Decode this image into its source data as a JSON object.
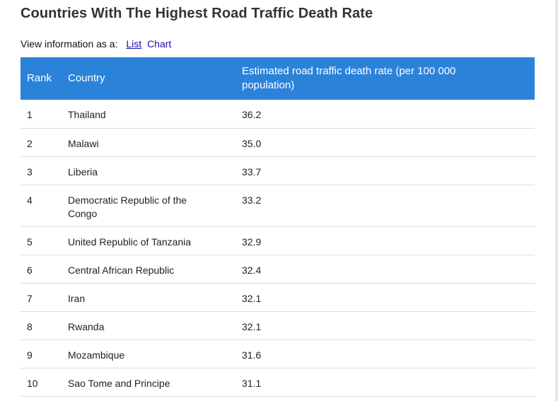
{
  "page": {
    "title": "Countries With The Highest Road Traffic Death Rate"
  },
  "view": {
    "label": "View information as a:",
    "list_link": "List",
    "chart_link": "Chart"
  },
  "table": {
    "headers": {
      "rank": "Rank",
      "country": "Country",
      "rate": "Estimated road traffic death rate (per 100 000 population)"
    },
    "rows": [
      {
        "rank": "1",
        "country": "Thailand",
        "rate": "36.2"
      },
      {
        "rank": "2",
        "country": "Malawi",
        "rate": "35.0"
      },
      {
        "rank": "3",
        "country": "Liberia",
        "rate": "33.7"
      },
      {
        "rank": "4",
        "country": "Democratic Republic of the Congo",
        "rate": "33.2"
      },
      {
        "rank": "5",
        "country": "United Republic of Tanzania",
        "rate": "32.9"
      },
      {
        "rank": "6",
        "country": "Central African Republic",
        "rate": "32.4"
      },
      {
        "rank": "7",
        "country": "Iran",
        "rate": "32.1"
      },
      {
        "rank": "8",
        "country": "Rwanda",
        "rate": "32.1"
      },
      {
        "rank": "9",
        "country": "Mozambique",
        "rate": "31.6"
      },
      {
        "rank": "10",
        "country": "Sao Tome and Principe",
        "rate": "31.1"
      }
    ]
  }
}
